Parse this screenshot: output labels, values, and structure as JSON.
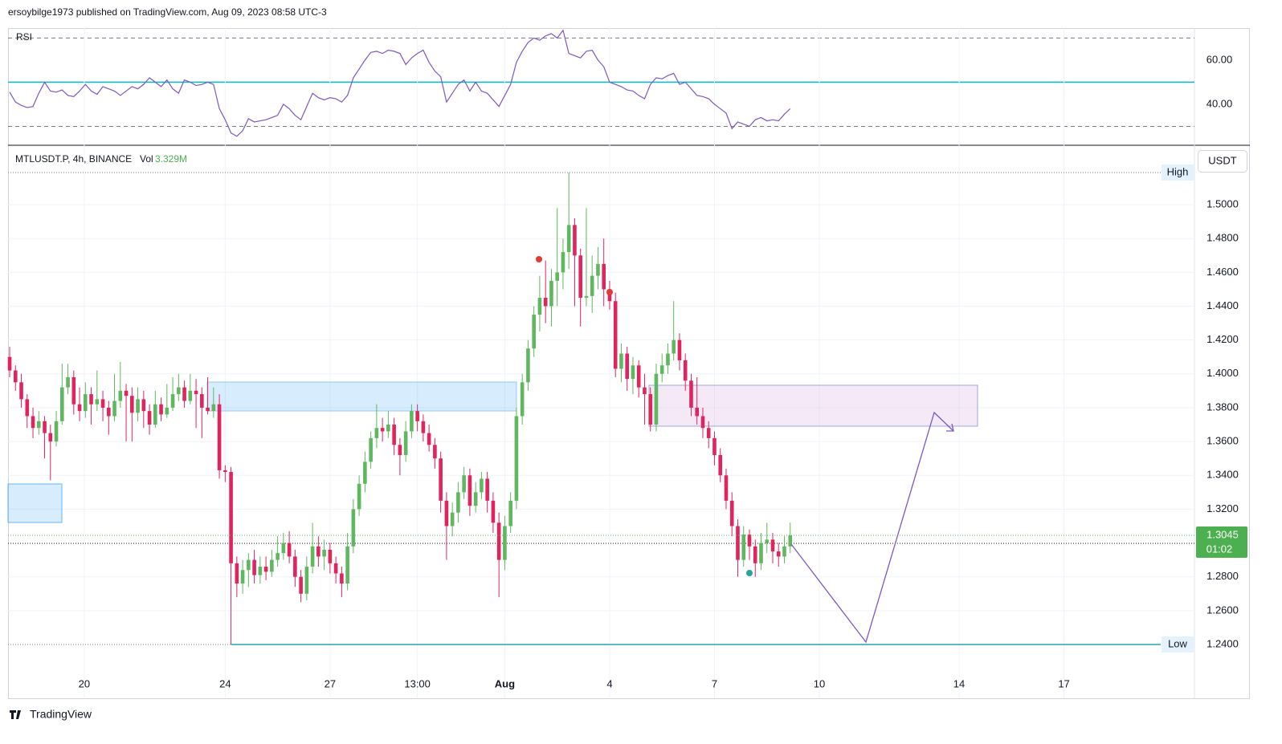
{
  "header": "ersoybilge1973 published on TradingView.com, Aug 09, 2023 08:58 UTC-3",
  "footer": "TradingView",
  "chart_data": [
    {
      "type": "line",
      "title": "RSI",
      "color": "#7e57c2",
      "values": [
        45.5,
        41,
        39.5,
        38.5,
        39,
        45,
        50,
        46,
        45.5,
        46.5,
        44,
        43.5,
        46,
        49,
        46,
        44.5,
        48,
        47,
        46,
        44,
        46,
        48,
        47,
        49,
        52,
        50,
        48,
        51,
        47,
        45,
        51,
        50,
        48.5,
        49,
        50,
        49,
        38,
        33,
        27,
        25.5,
        28,
        33.5,
        32,
        32.5,
        33,
        34,
        35,
        40,
        38,
        35,
        33,
        39,
        45,
        43,
        42,
        43,
        42.5,
        41,
        44,
        52,
        56,
        60,
        63.5,
        64,
        63,
        64.5,
        64,
        63,
        58,
        61,
        63,
        64.5,
        59,
        55,
        52.5,
        41,
        45,
        49,
        51,
        46,
        50,
        46,
        45,
        42,
        39,
        44,
        49,
        59,
        64,
        68,
        70,
        69,
        71,
        72,
        70,
        73.5,
        63,
        62,
        61,
        64,
        64.5,
        60,
        57,
        50,
        49,
        48,
        46.5,
        46,
        44,
        42.5,
        49,
        52,
        51.5,
        53,
        54,
        49,
        50,
        47,
        44,
        43.5,
        42.5,
        40,
        38,
        36,
        29,
        32,
        31,
        30,
        33,
        34,
        32.5,
        33,
        32.5,
        35.5,
        38
      ],
      "ylim": [
        21.8,
        74.5
      ],
      "yticks": [
        {
          "value": 60,
          "label": "60.00"
        },
        {
          "value": 40,
          "label": "40.00"
        }
      ],
      "levels": [
        70,
        50,
        30
      ],
      "level_colors": [
        "#787b86",
        "#00bcd4",
        "#787b86"
      ]
    },
    {
      "type": "candlestick",
      "title": "MTLUSDT.P, 4h, BINANCE",
      "volume_label": "Vol",
      "volume": "3.329M",
      "currency": "USDT",
      "countdown": "01:02",
      "up_color": "#5fb85f",
      "down_color": "#e0245e",
      "xlim": [
        -0.28,
        203.4
      ],
      "xticks": [
        {
          "value": 12.8,
          "label": "20"
        },
        {
          "value": 37,
          "label": "24"
        },
        {
          "value": 55,
          "label": "27"
        },
        {
          "value": 70,
          "label": "13:00"
        },
        {
          "value": 85,
          "label": "Aug"
        },
        {
          "value": 103,
          "label": "4"
        },
        {
          "value": 121,
          "label": "7"
        },
        {
          "value": 139,
          "label": "10"
        },
        {
          "value": 163,
          "label": "14"
        },
        {
          "value": 181,
          "label": "17"
        }
      ],
      "ylim": [
        1.2082,
        1.5342
      ],
      "yticks": [
        {
          "value": 1.26,
          "label": "1.2600"
        },
        {
          "value": 1.28,
          "label": "1.2800"
        },
        {
          "value": 1.32,
          "label": "1.3200"
        },
        {
          "value": 1.34,
          "label": "1.3400"
        },
        {
          "value": 1.36,
          "label": "1.3600"
        },
        {
          "value": 1.38,
          "label": "1.3800"
        },
        {
          "value": 1.4,
          "label": "1.4000"
        },
        {
          "value": 1.42,
          "label": "1.4200"
        },
        {
          "value": 1.44,
          "label": "1.4400"
        },
        {
          "value": 1.46,
          "label": "1.4600"
        },
        {
          "value": 1.48,
          "label": "1.4800"
        },
        {
          "value": 1.5,
          "label": "1.5000"
        }
      ],
      "high": {
        "label": "High",
        "value": 1.519
      },
      "low": {
        "label": "Low",
        "value": 1.24,
        "price_label": "1.2400"
      },
      "candles": [
        [
          1.41,
          1.416,
          1.398,
          1.402
        ],
        [
          1.402,
          1.405,
          1.39,
          1.395
        ],
        [
          1.395,
          1.4,
          1.38,
          1.385
        ],
        [
          1.385,
          1.388,
          1.368,
          1.375
        ],
        [
          1.375,
          1.38,
          1.362,
          1.368
        ],
        [
          1.368,
          1.378,
          1.364,
          1.372
        ],
        [
          1.372,
          1.375,
          1.35,
          1.365
        ],
        [
          1.365,
          1.37,
          1.337,
          1.36
        ],
        [
          1.36,
          1.378,
          1.357,
          1.372
        ],
        [
          1.372,
          1.406,
          1.37,
          1.392
        ],
        [
          1.392,
          1.406,
          1.388,
          1.398
        ],
        [
          1.398,
          1.402,
          1.376,
          1.382
        ],
        [
          1.382,
          1.392,
          1.372,
          1.378
        ],
        [
          1.378,
          1.395,
          1.374,
          1.388
        ],
        [
          1.388,
          1.392,
          1.37,
          1.382
        ],
        [
          1.382,
          1.402,
          1.378,
          1.385
        ],
        [
          1.385,
          1.39,
          1.372,
          1.38
        ],
        [
          1.38,
          1.384,
          1.364,
          1.375
        ],
        [
          1.375,
          1.4,
          1.372,
          1.384
        ],
        [
          1.384,
          1.407,
          1.38,
          1.39
        ],
        [
          1.39,
          1.394,
          1.36,
          1.387
        ],
        [
          1.387,
          1.392,
          1.36,
          1.377
        ],
        [
          1.377,
          1.392,
          1.372,
          1.385
        ],
        [
          1.385,
          1.39,
          1.368,
          1.378
        ],
        [
          1.378,
          1.382,
          1.364,
          1.37
        ],
        [
          1.37,
          1.39,
          1.368,
          1.382
        ],
        [
          1.382,
          1.386,
          1.372,
          1.376
        ],
        [
          1.376,
          1.394,
          1.374,
          1.38
        ],
        [
          1.38,
          1.398,
          1.378,
          1.388
        ],
        [
          1.388,
          1.4,
          1.384,
          1.392
        ],
        [
          1.392,
          1.396,
          1.38,
          1.384
        ],
        [
          1.384,
          1.4,
          1.382,
          1.39
        ],
        [
          1.39,
          1.397,
          1.368,
          1.388
        ],
        [
          1.388,
          1.392,
          1.362,
          1.38
        ],
        [
          1.38,
          1.398,
          1.376,
          1.378
        ],
        [
          1.378,
          1.392,
          1.374,
          1.382
        ],
        [
          1.382,
          1.388,
          1.338,
          1.343
        ],
        [
          1.343,
          1.346,
          1.336,
          1.342
        ],
        [
          1.342,
          1.345,
          1.24,
          1.288
        ],
        [
          1.288,
          1.292,
          1.268,
          1.276
        ],
        [
          1.276,
          1.29,
          1.27,
          1.284
        ],
        [
          1.284,
          1.294,
          1.274,
          1.29
        ],
        [
          1.29,
          1.296,
          1.276,
          1.281
        ],
        [
          1.281,
          1.292,
          1.276,
          1.286
        ],
        [
          1.286,
          1.292,
          1.278,
          1.283
        ],
        [
          1.283,
          1.296,
          1.28,
          1.29
        ],
        [
          1.29,
          1.304,
          1.286,
          1.294
        ],
        [
          1.294,
          1.306,
          1.29,
          1.3
        ],
        [
          1.3,
          1.307,
          1.288,
          1.292
        ],
        [
          1.292,
          1.296,
          1.274,
          1.28
        ],
        [
          1.28,
          1.284,
          1.265,
          1.27
        ],
        [
          1.27,
          1.292,
          1.266,
          1.286
        ],
        [
          1.286,
          1.312,
          1.282,
          1.298
        ],
        [
          1.298,
          1.304,
          1.286,
          1.292
        ],
        [
          1.292,
          1.302,
          1.284,
          1.296
        ],
        [
          1.296,
          1.3,
          1.282,
          1.288
        ],
        [
          1.288,
          1.292,
          1.276,
          1.282
        ],
        [
          1.282,
          1.286,
          1.268,
          1.276
        ],
        [
          1.276,
          1.306,
          1.272,
          1.298
        ],
        [
          1.298,
          1.326,
          1.294,
          1.32
        ],
        [
          1.32,
          1.34,
          1.316,
          1.335
        ],
        [
          1.335,
          1.354,
          1.33,
          1.348
        ],
        [
          1.348,
          1.366,
          1.344,
          1.362
        ],
        [
          1.362,
          1.382,
          1.356,
          1.368
        ],
        [
          1.368,
          1.374,
          1.36,
          1.366
        ],
        [
          1.366,
          1.378,
          1.362,
          1.37
        ],
        [
          1.37,
          1.374,
          1.352,
          1.358
        ],
        [
          1.358,
          1.362,
          1.34,
          1.352
        ],
        [
          1.352,
          1.372,
          1.348,
          1.366
        ],
        [
          1.366,
          1.382,
          1.362,
          1.378
        ],
        [
          1.378,
          1.382,
          1.366,
          1.372
        ],
        [
          1.372,
          1.376,
          1.36,
          1.365
        ],
        [
          1.365,
          1.37,
          1.354,
          1.358
        ],
        [
          1.358,
          1.362,
          1.344,
          1.35
        ],
        [
          1.35,
          1.354,
          1.318,
          1.325
        ],
        [
          1.325,
          1.33,
          1.29,
          1.31
        ],
        [
          1.31,
          1.324,
          1.304,
          1.318
        ],
        [
          1.318,
          1.336,
          1.312,
          1.33
        ],
        [
          1.33,
          1.345,
          1.326,
          1.34
        ],
        [
          1.34,
          1.344,
          1.316,
          1.322
        ],
        [
          1.322,
          1.336,
          1.318,
          1.33
        ],
        [
          1.33,
          1.342,
          1.326,
          1.338
        ],
        [
          1.338,
          1.342,
          1.318,
          1.325
        ],
        [
          1.325,
          1.33,
          1.306,
          1.312
        ],
        [
          1.312,
          1.318,
          1.268,
          1.29
        ],
        [
          1.29,
          1.316,
          1.284,
          1.31
        ],
        [
          1.31,
          1.33,
          1.306,
          1.325
        ],
        [
          1.325,
          1.38,
          1.32,
          1.375
        ],
        [
          1.375,
          1.4,
          1.37,
          1.395
        ],
        [
          1.395,
          1.42,
          1.39,
          1.415
        ],
        [
          1.415,
          1.44,
          1.41,
          1.435
        ],
        [
          1.435,
          1.458,
          1.425,
          1.445
        ],
        [
          1.445,
          1.467,
          1.43,
          1.44
        ],
        [
          1.44,
          1.462,
          1.428,
          1.455
        ],
        [
          1.455,
          1.498,
          1.44,
          1.46
        ],
        [
          1.46,
          1.48,
          1.45,
          1.472
        ],
        [
          1.472,
          1.519,
          1.462,
          1.488
        ],
        [
          1.488,
          1.492,
          1.44,
          1.47
        ],
        [
          1.47,
          1.474,
          1.428,
          1.445
        ],
        [
          1.445,
          1.498,
          1.44,
          1.446
        ],
        [
          1.446,
          1.47,
          1.436,
          1.458
        ],
        [
          1.458,
          1.475,
          1.45,
          1.465
        ],
        [
          1.465,
          1.48,
          1.44,
          1.45
        ],
        [
          1.45,
          1.455,
          1.438,
          1.443
        ],
        [
          1.443,
          1.448,
          1.398,
          1.403
        ],
        [
          1.403,
          1.418,
          1.395,
          1.412
        ],
        [
          1.412,
          1.416,
          1.39,
          1.397
        ],
        [
          1.397,
          1.41,
          1.388,
          1.405
        ],
        [
          1.405,
          1.408,
          1.386,
          1.392
        ],
        [
          1.392,
          1.4,
          1.37,
          1.388
        ],
        [
          1.388,
          1.392,
          1.366,
          1.37
        ],
        [
          1.37,
          1.406,
          1.366,
          1.4
        ],
        [
          1.4,
          1.412,
          1.395,
          1.405
        ],
        [
          1.405,
          1.418,
          1.4,
          1.412
        ],
        [
          1.412,
          1.443,
          1.408,
          1.42
        ],
        [
          1.42,
          1.424,
          1.402,
          1.408
        ],
        [
          1.408,
          1.412,
          1.39,
          1.396
        ],
        [
          1.396,
          1.4,
          1.375,
          1.38
        ],
        [
          1.38,
          1.398,
          1.37,
          1.375
        ],
        [
          1.375,
          1.38,
          1.362,
          1.368
        ],
        [
          1.368,
          1.372,
          1.356,
          1.362
        ],
        [
          1.362,
          1.366,
          1.346,
          1.352
        ],
        [
          1.352,
          1.356,
          1.336,
          1.34
        ],
        [
          1.34,
          1.344,
          1.32,
          1.325
        ],
        [
          1.325,
          1.33,
          1.304,
          1.31
        ],
        [
          1.31,
          1.314,
          1.28,
          1.29
        ],
        [
          1.29,
          1.31,
          1.286,
          1.305
        ],
        [
          1.305,
          1.308,
          1.29,
          1.298
        ],
        [
          1.298,
          1.302,
          1.28,
          1.288
        ],
        [
          1.288,
          1.306,
          1.284,
          1.3
        ],
        [
          1.3,
          1.312,
          1.294,
          1.302
        ],
        [
          1.302,
          1.306,
          1.288,
          1.295
        ],
        [
          1.295,
          1.3,
          1.286,
          1.292
        ],
        [
          1.292,
          1.304,
          1.288,
          1.298
        ],
        [
          1.298,
          1.312,
          1.294,
          1.3045
        ]
      ]
    }
  ]
}
